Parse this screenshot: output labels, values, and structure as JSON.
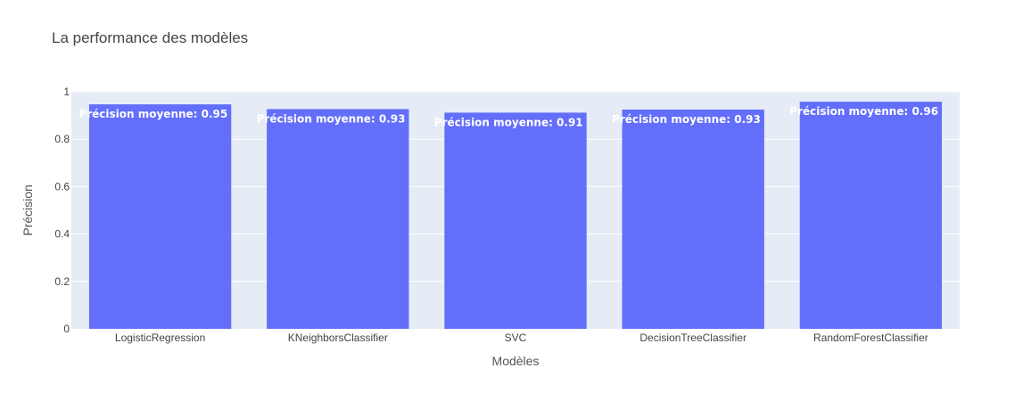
{
  "chart_data": {
    "type": "bar",
    "title": "La performance des modèles",
    "xlabel": "Modèles",
    "ylabel": "Précision",
    "categories": [
      "LogisticRegression",
      "KNeighborsClassifier",
      "SVC",
      "DecisionTreeClassifier",
      "RandomForestClassifier"
    ],
    "values": [
      0.947,
      0.927,
      0.912,
      0.925,
      0.958
    ],
    "data_labels": [
      "Précision moyenne: 0.95",
      "Précision moyenne: 0.93",
      "Précision moyenne: 0.91",
      "Précision moyenne: 0.93",
      "Précision moyenne: 0.96"
    ],
    "ylim": [
      0,
      1
    ],
    "yticks": [
      0,
      0.2,
      0.4,
      0.6,
      0.8,
      1
    ],
    "ytick_labels": [
      "0",
      "0.2",
      "0.4",
      "0.6",
      "0.8",
      "1"
    ],
    "grid": true,
    "colors": {
      "bar": "#636efa",
      "plot_bg": "#e5ecf6",
      "grid": "#ffffff"
    }
  }
}
